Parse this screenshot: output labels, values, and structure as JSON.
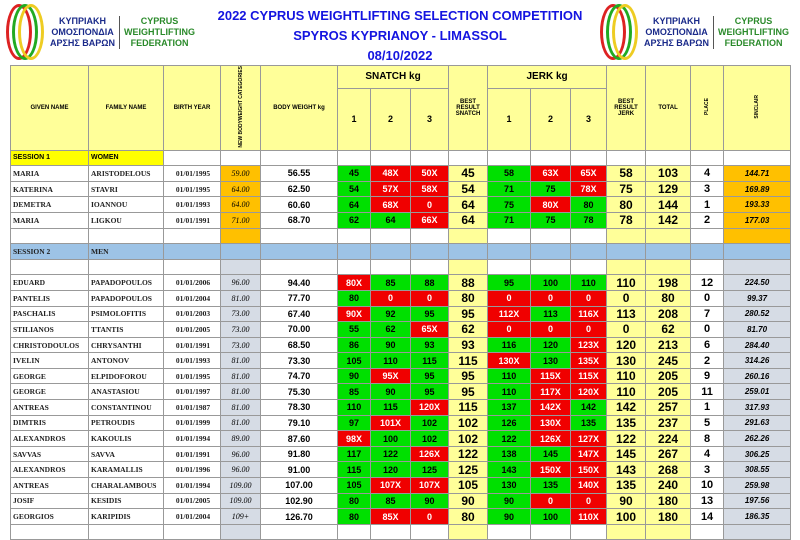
{
  "logo": {
    "greek": [
      "ΚΥΠΡΙΑΚΗ",
      "ΟΜΟΣΠΟΝΔΙΑ",
      "ΑΡΣΗΣ ΒΑΡΩΝ"
    ],
    "english": [
      "CYPRUS",
      "WEIGHTLIFTING",
      "FEDERATION"
    ]
  },
  "title": {
    "line1": "2022 CYPRUS  WEIGHTLIFTING SELECTION COMPETITION",
    "line2": "SPYROS KYPRIANOY - LIMASSOL",
    "date": "08/10/2022"
  },
  "headers": {
    "given": "GIVEN NAME",
    "family": "FAMILY NAME",
    "birth": "BIRTH YEAR",
    "category": "NEW BODYWEIGHT CATEGORIES",
    "bw": "BODY WEIGHT kg",
    "snatch": "SNATCH kg",
    "jerk": "JERK kg",
    "a1": "1",
    "a2": "2",
    "a3": "3",
    "best_snatch": "BEST RESULT SNATCH",
    "best_jerk": "BEST RESULT JERK",
    "total": "TOTAL",
    "place": "PLACE",
    "sinclair": "SINCLAIR"
  },
  "colors": {
    "good_lift": "#00e000",
    "no_lift": "#f00000",
    "best": "#ffff99",
    "women_category": "#ffc000",
    "men_category": "#d6dce5",
    "session2": "#9dc3e6"
  },
  "sessions": [
    {
      "label": "SESSION 1",
      "group": "WOMEN",
      "athletes": [
        {
          "given": "MARIA",
          "family": "ARISTODELOUS",
          "birth": "01/01/1995",
          "cat": "59.00",
          "bw": "56.55",
          "snatch": [
            "45",
            "48X",
            "50X"
          ],
          "best_snatch": "45",
          "jerk": [
            "58",
            "63X",
            "65X"
          ],
          "best_jerk": "58",
          "total": "103",
          "place": "4",
          "sinclair": "144.71"
        },
        {
          "given": "KATERINA",
          "family": "STAVRI",
          "birth": "01/01/1995",
          "cat": "64.00",
          "bw": "62.50",
          "snatch": [
            "54",
            "57X",
            "58X"
          ],
          "best_snatch": "54",
          "jerk": [
            "71",
            "75",
            "78X"
          ],
          "best_jerk": "75",
          "total": "129",
          "place": "3",
          "sinclair": "169.89"
        },
        {
          "given": "DEMETRA",
          "family": "IOANNOU",
          "birth": "01/01/1993",
          "cat": "64.00",
          "bw": "60.60",
          "snatch": [
            "64",
            "68X",
            "0"
          ],
          "best_snatch": "64",
          "jerk": [
            "75",
            "80X",
            "80"
          ],
          "best_jerk": "80",
          "total": "144",
          "place": "1",
          "sinclair": "193.33"
        },
        {
          "given": "MARIA",
          "family": "LIGKOU",
          "birth": "01/01/1991",
          "cat": "71.00",
          "bw": "68.70",
          "snatch": [
            "62",
            "64",
            "66X"
          ],
          "best_snatch": "64",
          "jerk": [
            "71",
            "75",
            "78"
          ],
          "best_jerk": "78",
          "total": "142",
          "place": "2",
          "sinclair": "177.03"
        }
      ]
    },
    {
      "label": "SESSION 2",
      "group": "MEN",
      "athletes": [
        {
          "given": "EDUARD",
          "family": "PAPADOPOULOS",
          "birth": "01/01/2006",
          "cat": "96.00",
          "bw": "94.40",
          "snatch": [
            "80X",
            "85",
            "88"
          ],
          "best_snatch": "88",
          "jerk": [
            "95",
            "100",
            "110"
          ],
          "best_jerk": "110",
          "total": "198",
          "place": "12",
          "sinclair": "224.50"
        },
        {
          "given": "PANTELIS",
          "family": "PAPADOPOULOS",
          "birth": "01/01/2004",
          "cat": "81.00",
          "bw": "77.70",
          "snatch": [
            "80",
            "0",
            "0"
          ],
          "best_snatch": "80",
          "jerk": [
            "0",
            "0",
            "0"
          ],
          "best_jerk": "0",
          "total": "80",
          "place": "0",
          "sinclair": "99.37"
        },
        {
          "given": "PASCHALIS",
          "family": "PSIMOLOFITIS",
          "birth": "01/01/2003",
          "cat": "73.00",
          "bw": "67.40",
          "snatch": [
            "90X",
            "92",
            "95"
          ],
          "best_snatch": "95",
          "jerk": [
            "112X",
            "113",
            "116X"
          ],
          "best_jerk": "113",
          "total": "208",
          "place": "7",
          "sinclair": "280.52"
        },
        {
          "given": "STILIANOS",
          "family": "TTANTIS",
          "birth": "01/01/2005",
          "cat": "73.00",
          "bw": "70.00",
          "snatch": [
            "55",
            "62",
            "65X"
          ],
          "best_snatch": "62",
          "jerk": [
            "0",
            "0",
            "0"
          ],
          "best_jerk": "0",
          "total": "62",
          "place": "0",
          "sinclair": "81.70"
        },
        {
          "given": "CHRISTODOULOS",
          "family": "CHRYSANTHI",
          "birth": "01/01/1991",
          "cat": "73.00",
          "bw": "68.50",
          "snatch": [
            "86",
            "90",
            "93"
          ],
          "best_snatch": "93",
          "jerk": [
            "116",
            "120",
            "123X"
          ],
          "best_jerk": "120",
          "total": "213",
          "place": "6",
          "sinclair": "284.40"
        },
        {
          "given": "IVELIN",
          "family": "ANTONOV",
          "birth": "01/01/1993",
          "cat": "81.00",
          "bw": "73.30",
          "snatch": [
            "105",
            "110",
            "115"
          ],
          "best_snatch": "115",
          "jerk": [
            "130X",
            "130",
            "135X"
          ],
          "best_jerk": "130",
          "total": "245",
          "place": "2",
          "sinclair": "314.26"
        },
        {
          "given": "GEORGE",
          "family": "ELPIDOFOROU",
          "birth": "01/01/1995",
          "cat": "81.00",
          "bw": "74.70",
          "snatch": [
            "90",
            "95X",
            "95"
          ],
          "best_snatch": "95",
          "jerk": [
            "110",
            "115X",
            "115X"
          ],
          "best_jerk": "110",
          "total": "205",
          "place": "9",
          "sinclair": "260.16"
        },
        {
          "given": "GEORGE",
          "family": "ANASTASIOU",
          "birth": "01/01/1997",
          "cat": "81.00",
          "bw": "75.30",
          "snatch": [
            "85",
            "90",
            "95"
          ],
          "best_snatch": "95",
          "jerk": [
            "110",
            "117X",
            "120X"
          ],
          "best_jerk": "110",
          "total": "205",
          "place": "11",
          "sinclair": "259.01"
        },
        {
          "given": "ANTREAS",
          "family": "CONSTANTINOU",
          "birth": "01/01/1987",
          "cat": "81.00",
          "bw": "78.30",
          "snatch": [
            "110",
            "115",
            "120X"
          ],
          "best_snatch": "115",
          "jerk": [
            "137",
            "142X",
            "142"
          ],
          "best_jerk": "142",
          "total": "257",
          "place": "1",
          "sinclair": "317.93"
        },
        {
          "given": "DIMTRIS",
          "family": "PETROUDIS",
          "birth": "01/01/1999",
          "cat": "81.00",
          "bw": "79.10",
          "snatch": [
            "97",
            "101X",
            "102"
          ],
          "best_snatch": "102",
          "jerk": [
            "126",
            "130X",
            "135"
          ],
          "best_jerk": "135",
          "total": "237",
          "place": "5",
          "sinclair": "291.63"
        },
        {
          "given": "ALEXANDROS",
          "family": "KAKOULIS",
          "birth": "01/01/1994",
          "cat": "89.00",
          "bw": "87.60",
          "snatch": [
            "98X",
            "100",
            "102"
          ],
          "best_snatch": "102",
          "jerk": [
            "122",
            "126X",
            "127X"
          ],
          "best_jerk": "122",
          "total": "224",
          "place": "8",
          "sinclair": "262.26"
        },
        {
          "given": "SAVVAS",
          "family": "SAVVA",
          "birth": "01/01/1991",
          "cat": "96.00",
          "bw": "91.80",
          "snatch": [
            "117",
            "122",
            "126X"
          ],
          "best_snatch": "122",
          "jerk": [
            "138",
            "145",
            "147X"
          ],
          "best_jerk": "145",
          "total": "267",
          "place": "4",
          "sinclair": "306.25"
        },
        {
          "given": "ALEXANDROS",
          "family": "KARAMALLIS",
          "birth": "01/01/1996",
          "cat": "96.00",
          "bw": "91.00",
          "snatch": [
            "115",
            "120",
            "125"
          ],
          "best_snatch": "125",
          "jerk": [
            "143",
            "150X",
            "150X"
          ],
          "best_jerk": "143",
          "total": "268",
          "place": "3",
          "sinclair": "308.55"
        },
        {
          "given": "ANTREAS",
          "family": "CHARALAMBOUS",
          "birth": "01/01/1994",
          "cat": "109.00",
          "bw": "107.00",
          "snatch": [
            "105",
            "107X",
            "107X"
          ],
          "best_snatch": "105",
          "jerk": [
            "130",
            "135",
            "140X"
          ],
          "best_jerk": "135",
          "total": "240",
          "place": "10",
          "sinclair": "259.98"
        },
        {
          "given": "JOSIF",
          "family": "KESIDIS",
          "birth": "01/01/2005",
          "cat": "109.00",
          "bw": "102.90",
          "snatch": [
            "80",
            "85",
            "90"
          ],
          "best_snatch": "90",
          "jerk": [
            "90",
            "0",
            "0"
          ],
          "best_jerk": "90",
          "total": "180",
          "place": "13",
          "sinclair": "197.56"
        },
        {
          "given": "GEORGIOS",
          "family": "KARIPIDIS",
          "birth": "01/01/2004",
          "cat": "109+",
          "bw": "126.70",
          "snatch": [
            "80",
            "85X",
            "0"
          ],
          "best_snatch": "80",
          "jerk": [
            "90",
            "100",
            "110X"
          ],
          "best_jerk": "100",
          "total": "180",
          "place": "14",
          "sinclair": "186.35"
        }
      ]
    }
  ]
}
